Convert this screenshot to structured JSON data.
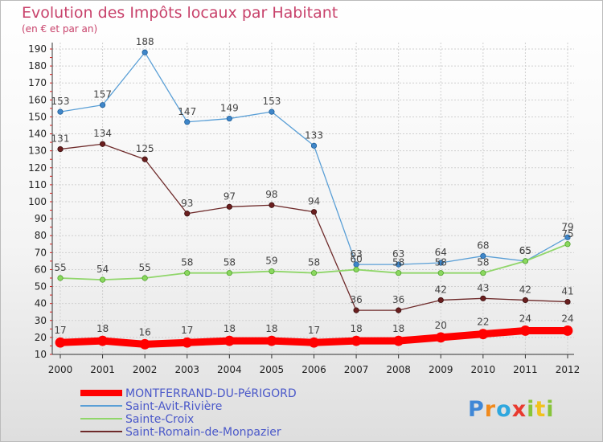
{
  "chart_data": {
    "type": "line",
    "title": "Evolution des Impôts locaux par Habitant",
    "subtitle": "(en € et par an)",
    "xlabel": "",
    "ylabel": "",
    "ylim": [
      10,
      190
    ],
    "yticks": [
      10,
      20,
      30,
      40,
      50,
      60,
      70,
      80,
      90,
      100,
      110,
      120,
      130,
      140,
      150,
      160,
      170,
      180,
      190
    ],
    "x": [
      "2000",
      "2001",
      "2002",
      "2003",
      "2004",
      "2005",
      "2006",
      "2007",
      "2008",
      "2009",
      "2010",
      "2011",
      "2012"
    ],
    "grid": true,
    "legend_position": "bottom-left",
    "series": [
      {
        "name": "MONTFERRAND-DU-PéRIGORD",
        "color": "#ff0000",
        "values": [
          17,
          18,
          16,
          17,
          18,
          18,
          17,
          18,
          18,
          20,
          22,
          24,
          24
        ]
      },
      {
        "name": "Saint-Avit-Rivière",
        "color": "#5a9fd6",
        "values": [
          153,
          157,
          188,
          147,
          149,
          153,
          133,
          63,
          63,
          64,
          68,
          65,
          79
        ]
      },
      {
        "name": "Sainte-Croix",
        "color": "#90d66a",
        "values": [
          55,
          54,
          55,
          58,
          58,
          59,
          58,
          60,
          58,
          58,
          58,
          65,
          75
        ]
      },
      {
        "name": "Saint-Romain-de-Monpazier",
        "color": "#6e2a2a",
        "values": [
          131,
          134,
          125,
          93,
          97,
          98,
          94,
          36,
          36,
          42,
          43,
          42,
          41
        ]
      }
    ]
  },
  "logo": {
    "letters": [
      "P",
      "r",
      "o",
      "x",
      "i",
      "t",
      "i"
    ]
  }
}
